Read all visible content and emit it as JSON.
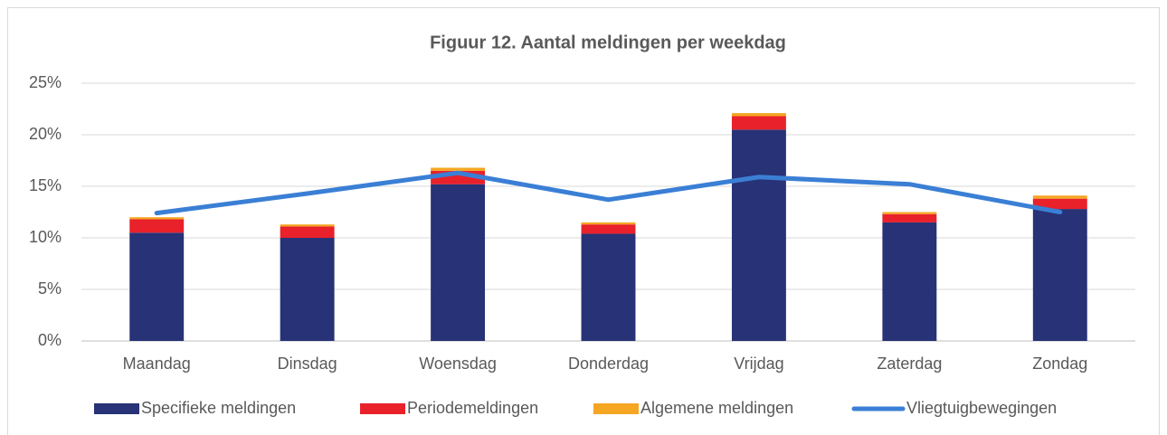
{
  "chart_data": {
    "type": "bar",
    "stacked": true,
    "title": "Figuur 12. Aantal meldingen per weekdag",
    "categories": [
      "Maandag",
      "Dinsdag",
      "Woensdag",
      "Donderdag",
      "Vrijdag",
      "Zaterdag",
      "Zondag"
    ],
    "series": [
      {
        "name": "Specifieke meldingen",
        "color": "#283276",
        "values": [
          10.5,
          10.0,
          15.2,
          10.4,
          20.5,
          11.5,
          12.8
        ]
      },
      {
        "name": "Periodemeldingen",
        "color": "#e8212b",
        "values": [
          1.3,
          1.1,
          1.3,
          0.9,
          1.3,
          0.8,
          1.0
        ]
      },
      {
        "name": "Algemene meldingen",
        "color": "#f5a623",
        "values": [
          0.2,
          0.2,
          0.3,
          0.2,
          0.3,
          0.2,
          0.3
        ]
      },
      {
        "name": "Vliegtuigbewegingen",
        "color": "#3a7fd5",
        "type": "line",
        "values": [
          12.4,
          14.3,
          16.3,
          13.7,
          15.9,
          15.2,
          12.5
        ]
      }
    ],
    "ylim": [
      0,
      25
    ],
    "yticks": [
      {
        "value": 0,
        "label": "0%"
      },
      {
        "value": 5,
        "label": "5%"
      },
      {
        "value": 10,
        "label": "10%"
      },
      {
        "value": 15,
        "label": "15%"
      },
      {
        "value": 20,
        "label": "20%"
      },
      {
        "value": 25,
        "label": "25%"
      }
    ],
    "grid": true,
    "legend": "bottom"
  }
}
